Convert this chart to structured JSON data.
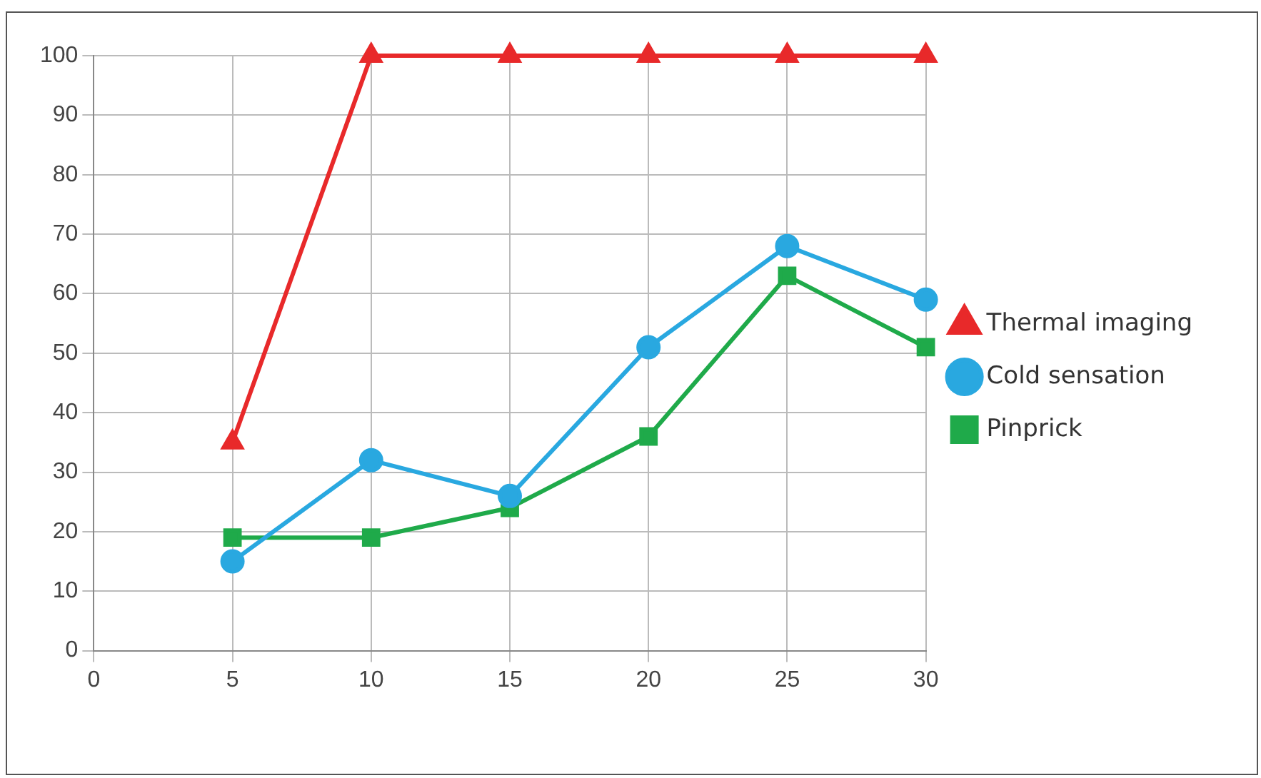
{
  "chart_data": {
    "type": "line",
    "x": [
      5,
      10,
      15,
      20,
      25,
      30
    ],
    "series": [
      {
        "name": "Thermal imaging",
        "color": "#e8292a",
        "marker": "triangle",
        "values": [
          35,
          100,
          100,
          100,
          100,
          100
        ]
      },
      {
        "name": "Cold sensation",
        "color": "#29a8e0",
        "marker": "circle",
        "values": [
          15,
          32,
          26,
          51,
          68,
          59
        ]
      },
      {
        "name": "Pinprick",
        "color": "#1faa4a",
        "marker": "square",
        "values": [
          19,
          19,
          24,
          36,
          63,
          51
        ]
      }
    ],
    "xlim": [
      0,
      30
    ],
    "xticks": [
      0,
      5,
      10,
      15,
      20,
      25,
      30
    ],
    "ylim": [
      0,
      100
    ],
    "yticks": [
      0,
      10,
      20,
      30,
      40,
      50,
      60,
      70,
      80,
      90,
      100
    ],
    "grid": true,
    "legend": "right",
    "line_style": "solid"
  }
}
